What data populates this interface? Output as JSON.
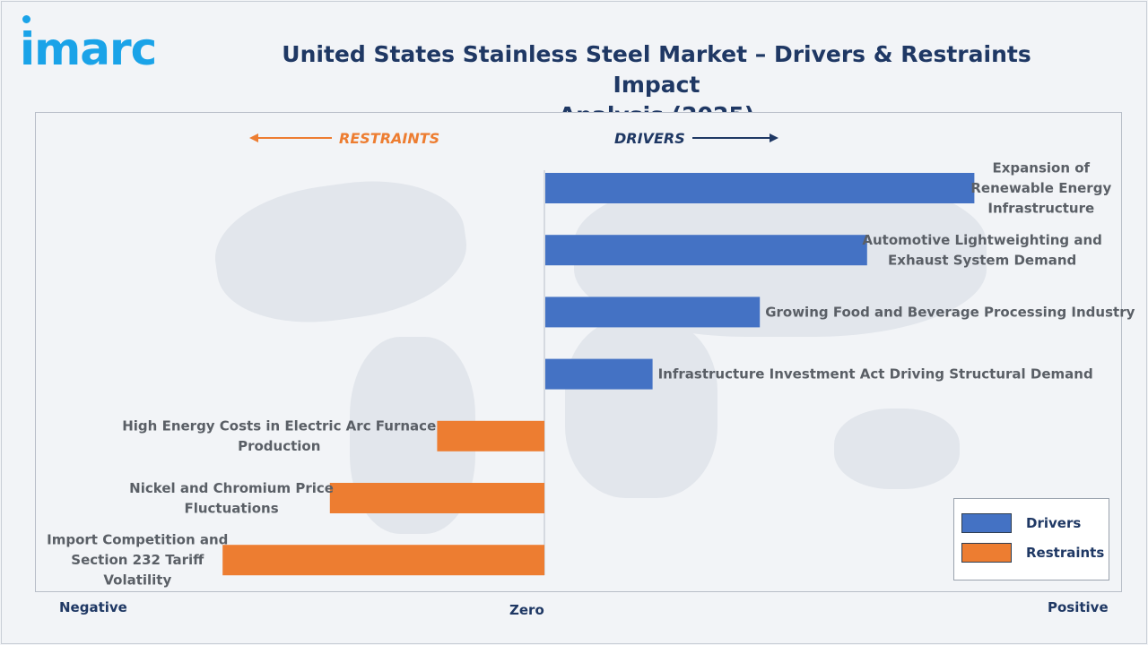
{
  "brand": {
    "logo_text": "imarc"
  },
  "header": {
    "title_line1": "United States Stainless Steel Market – Drivers & Restraints Impact",
    "title_line2": "Analysis (2025)"
  },
  "direction": {
    "restraints": "RESTRAINTS",
    "drivers": "DRIVERS"
  },
  "axis": {
    "negative": "Negative",
    "zero": "Zero",
    "positive": "Positive"
  },
  "legend": {
    "drivers": "Drivers",
    "restraints": "Restraints"
  },
  "colors": {
    "drivers": "#4472c4",
    "restraints": "#ed7d31",
    "title": "#1f3864",
    "logo": "#1aa3e8",
    "arrow_restraints": "#ed7d31",
    "arrow_drivers": "#1f3864"
  },
  "chart_data": {
    "type": "bar",
    "orientation": "horizontal",
    "title": "United States Stainless Steel Market – Drivers & Restraints Impact Analysis (2025)",
    "xlabel_left": "Negative",
    "xlabel_center": "Zero",
    "xlabel_right": "Positive",
    "xlim": [
      -6,
      10
    ],
    "grid": false,
    "legend": "bottom-right",
    "categories": [
      "Expansion of Renewable Energy Infrastructure",
      "Automotive Lightweighting and Exhaust System Demand",
      "Growing Food and Beverage Processing Industry",
      "Infrastructure Investment Act Driving Structural Demand",
      "High Energy Costs in Electric Arc Furnace Production",
      "Nickel and Chromium Price Fluctuations",
      "Import Competition and Section 232 Tariff Volatility"
    ],
    "label_lines": [
      [
        "Expansion of",
        "Renewable Energy",
        "Infrastructure"
      ],
      [
        "Automotive Lightweighting and",
        "Exhaust System Demand"
      ],
      [
        "Growing Food and Beverage Processing Industry"
      ],
      [
        "Infrastructure Investment Act Driving Structural Demand"
      ],
      [
        "High Energy Costs in Electric Arc Furnace",
        "Production"
      ],
      [
        "Nickel and Chromium Price",
        "Fluctuations"
      ],
      [
        "Import Competition and",
        "Section 232 Tariff",
        "Volatility"
      ]
    ],
    "series": [
      {
        "name": "Drivers",
        "values": [
          8,
          6,
          4,
          2,
          null,
          null,
          null
        ]
      },
      {
        "name": "Restraints",
        "values": [
          null,
          null,
          null,
          null,
          -2,
          -4,
          -6
        ]
      }
    ]
  }
}
